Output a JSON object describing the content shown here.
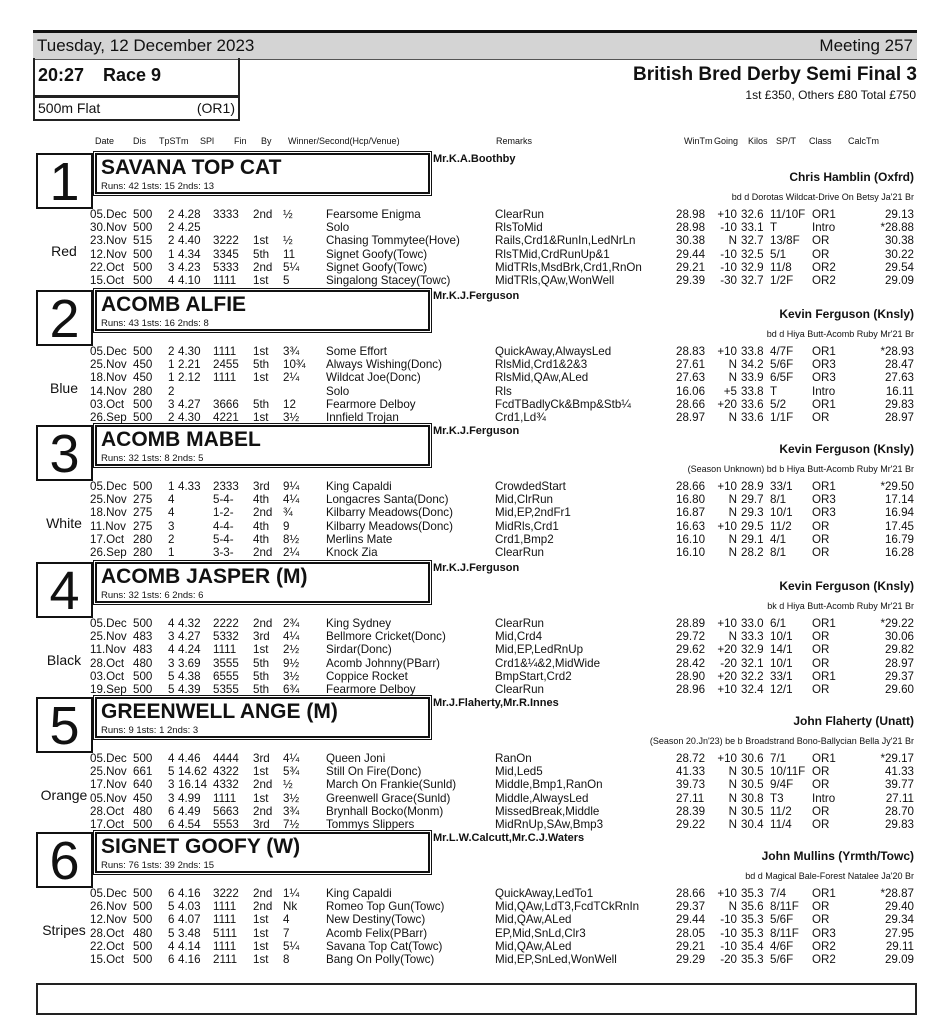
{
  "header": {
    "date": "Tuesday, 12 December 2023",
    "meeting": "Meeting 257",
    "race_time": "20:27",
    "race_number": "Race 9",
    "distance": "500m Flat",
    "grade": "(OR1)",
    "title": "British Bred Derby Semi Final 3",
    "prize": "1st £350, Others £80 Total £750"
  },
  "columns": [
    "Date",
    "Dis",
    "TpSTm",
    "SPl",
    "Fin",
    "By",
    "Winner/Second(Hcp/Venue)",
    "Remarks",
    "WinTm",
    "Going",
    "Kilos",
    "SP/T",
    "Class",
    "CalcTm"
  ],
  "dogs": [
    {
      "trap": "1",
      "color": "Red",
      "name": "SAVANA TOP CAT",
      "stats": "Runs: 42 1sts: 15 2nds: 13",
      "owner": "Mr.K.A.Boothby",
      "trainer": "Chris Hamblin (Oxfrd)",
      "breeding": "bd d Dorotas Wildcat-Drive On Betsy Ja'21 Br",
      "runs": [
        [
          "05.Dec",
          "500",
          "2",
          "4.28",
          "3333",
          "2nd",
          "½",
          "Fearsome Enigma",
          "ClearRun",
          "28.98",
          "+10",
          "32.6",
          "11/10F",
          "OR1",
          "29.13"
        ],
        [
          "30.Nov",
          "500",
          "2",
          "4.25",
          "",
          "",
          "",
          "Solo",
          "RlsToMid",
          "28.98",
          "-10",
          "33.1",
          "T",
          "Intro",
          "*28.88"
        ],
        [
          "23.Nov",
          "515",
          "2",
          "4.40",
          "3222",
          "1st",
          "½",
          "Chasing Tommytee(Hove)",
          "Rails,Crd1&RunIn,LedNrLn",
          "30.38",
          "N",
          "32.7",
          "13/8F",
          "OR",
          "30.38"
        ],
        [
          "12.Nov",
          "500",
          "1",
          "4.34",
          "3345",
          "5th",
          "11",
          "Signet Goofy(Towc)",
          "RlsTMid,CrdRunUp&1",
          "29.44",
          "-10",
          "32.5",
          "5/1",
          "OR",
          "30.22"
        ],
        [
          "22.Oct",
          "500",
          "3",
          "4.23",
          "5333",
          "2nd",
          "5¼",
          "Signet Goofy(Towc)",
          "MidTRls,MsdBrk,Crd1,RnOn",
          "29.21",
          "-10",
          "32.9",
          "11/8",
          "OR2",
          "29.54"
        ],
        [
          "15.Oct",
          "500",
          "4",
          "4.10",
          "1111",
          "1st",
          "5",
          "Singalong Stacey(Towc)",
          "MidTRls,QAw,WonWell",
          "29.39",
          "-30",
          "32.7",
          "1/2F",
          "OR2",
          "29.09"
        ]
      ]
    },
    {
      "trap": "2",
      "color": "Blue",
      "name": "ACOMB ALFIE",
      "stats": "Runs: 43 1sts: 16 2nds: 8",
      "owner": "Mr.K.J.Ferguson",
      "trainer": "Kevin Ferguson (Knsly)",
      "breeding": "bd d Hiya Butt-Acomb Ruby Mr'21 Br",
      "runs": [
        [
          "05.Dec",
          "500",
          "2",
          "4.30",
          "1111",
          "1st",
          "3¾",
          "Some Effort",
          "QuickAway,AlwaysLed",
          "28.83",
          "+10",
          "33.8",
          "4/7F",
          "OR1",
          "*28.93"
        ],
        [
          "25.Nov",
          "450",
          "1",
          "2.21",
          "2455",
          "5th",
          "10¾",
          "Always Wishing(Donc)",
          "RlsMid,Crd1&2&3",
          "27.61",
          "N",
          "34.2",
          "5/6F",
          "OR3",
          "28.47"
        ],
        [
          "18.Nov",
          "450",
          "1",
          "2.12",
          "1111",
          "1st",
          "2¼",
          "Wildcat Joe(Donc)",
          "RlsMid,QAw,ALed",
          "27.63",
          "N",
          "33.9",
          "6/5F",
          "OR3",
          "27.63"
        ],
        [
          "14.Nov",
          "280",
          "2",
          "",
          "",
          "",
          "",
          "Solo",
          "Rls",
          "16.06",
          "+5",
          "33.8",
          "T",
          "Intro",
          "16.11"
        ],
        [
          "03.Oct",
          "500",
          "3",
          "4.27",
          "3666",
          "5th",
          "12",
          "Fearmore Delboy",
          "FcdTBadlyCk&Bmp&Stb¼",
          "28.66",
          "+20",
          "33.6",
          "5/2",
          "OR1",
          "29.83"
        ],
        [
          "26.Sep",
          "500",
          "2",
          "4.30",
          "4221",
          "1st",
          "3½",
          "Innfield Trojan",
          "Crd1,Ld¾",
          "28.97",
          "N",
          "33.6",
          "1/1F",
          "OR",
          "28.97"
        ]
      ]
    },
    {
      "trap": "3",
      "color": "White",
      "name": "ACOMB MABEL",
      "stats": "Runs: 32 1sts: 8 2nds: 5",
      "owner": "Mr.K.J.Ferguson",
      "trainer": "Kevin Ferguson (Knsly)",
      "breeding": "(Season Unknown) bd b Hiya Butt-Acomb Ruby Mr'21 Br",
      "runs": [
        [
          "05.Dec",
          "500",
          "1",
          "4.33",
          "2333",
          "3rd",
          "9¼",
          "King Capaldi",
          "CrowdedStart",
          "28.66",
          "+10",
          "28.9",
          "33/1",
          "OR1",
          "*29.50"
        ],
        [
          "25.Nov",
          "275",
          "4",
          "",
          "5-4-",
          "4th",
          "4¼",
          "Longacres Santa(Donc)",
          "Mid,ClrRun",
          "16.80",
          "N",
          "29.7",
          "8/1",
          "OR3",
          "17.14"
        ],
        [
          "18.Nov",
          "275",
          "4",
          "",
          "1-2-",
          "2nd",
          "¾",
          "Kilbarry Meadows(Donc)",
          "Mid,EP,2ndFr1",
          "16.87",
          "N",
          "29.3",
          "10/1",
          "OR3",
          "16.94"
        ],
        [
          "11.Nov",
          "275",
          "3",
          "",
          "4-4-",
          "4th",
          "9",
          "Kilbarry Meadows(Donc)",
          "MidRls,Crd1",
          "16.63",
          "+10",
          "29.5",
          "11/2",
          "OR",
          "17.45"
        ],
        [
          "17.Oct",
          "280",
          "2",
          "",
          "5-4-",
          "4th",
          "8½",
          "Merlins Mate",
          "Crd1,Bmp2",
          "16.10",
          "N",
          "29.1",
          "4/1",
          "OR",
          "16.79"
        ],
        [
          "26.Sep",
          "280",
          "1",
          "",
          "3-3-",
          "2nd",
          "2¼",
          "Knock Zia",
          "ClearRun",
          "16.10",
          "N",
          "28.2",
          "8/1",
          "OR",
          "16.28"
        ]
      ]
    },
    {
      "trap": "4",
      "color": "Black",
      "name": "ACOMB JASPER (M)",
      "stats": "Runs: 32 1sts: 6 2nds: 6",
      "owner": "Mr.K.J.Ferguson",
      "trainer": "Kevin Ferguson (Knsly)",
      "breeding": "bk d Hiya Butt-Acomb Ruby Mr'21 Br",
      "runs": [
        [
          "05.Dec",
          "500",
          "4",
          "4.32",
          "2222",
          "2nd",
          "2¾",
          "King Sydney",
          "ClearRun",
          "28.89",
          "+10",
          "33.0",
          "6/1",
          "OR1",
          "*29.22"
        ],
        [
          "25.Nov",
          "483",
          "3",
          "4.27",
          "5332",
          "3rd",
          "4¼",
          "Bellmore Cricket(Donc)",
          "Mid,Crd4",
          "29.72",
          "N",
          "33.3",
          "10/1",
          "OR",
          "30.06"
        ],
        [
          "11.Nov",
          "483",
          "4",
          "4.24",
          "1111",
          "1st",
          "2½",
          "Sirdar(Donc)",
          "Mid,EP,LedRnUp",
          "29.62",
          "+20",
          "32.9",
          "14/1",
          "OR",
          "29.82"
        ],
        [
          "28.Oct",
          "480",
          "3",
          "3.69",
          "3555",
          "5th",
          "9½",
          "Acomb Johnny(PBarr)",
          "Crd1&¼&2,MidWide",
          "28.42",
          "-20",
          "32.1",
          "10/1",
          "OR",
          "28.97"
        ],
        [
          "03.Oct",
          "500",
          "5",
          "4.38",
          "6555",
          "5th",
          "3½",
          "Coppice Rocket",
          "BmpStart,Crd2",
          "28.90",
          "+20",
          "32.2",
          "33/1",
          "OR1",
          "29.37"
        ],
        [
          "19.Sep",
          "500",
          "5",
          "4.39",
          "5355",
          "5th",
          "6¾",
          "Fearmore Delboy",
          "ClearRun",
          "28.96",
          "+10",
          "32.4",
          "12/1",
          "OR",
          "29.60"
        ]
      ]
    },
    {
      "trap": "5",
      "color": "Orange",
      "name": "GREENWELL ANGE (M)",
      "stats": "Runs: 9 1sts: 1 2nds: 3",
      "owner": "Mr.J.Flaherty,Mr.R.Innes",
      "trainer": "John Flaherty (Unatt)",
      "breeding": "(Season 20.Jn'23) be b Broadstrand Bono-Ballycian Bella Jy'21 Br",
      "runs": [
        [
          "05.Dec",
          "500",
          "4",
          "4.46",
          "4444",
          "3rd",
          "4¼",
          "Queen Joni",
          "RanOn",
          "28.72",
          "+10",
          "30.6",
          "7/1",
          "OR1",
          "*29.17"
        ],
        [
          "25.Nov",
          "661",
          "5",
          "14.62",
          "4322",
          "1st",
          "5¾",
          "Still On Fire(Donc)",
          "Mid,Led5",
          "41.33",
          "N",
          "30.5",
          "10/11F",
          "OR",
          "41.33"
        ],
        [
          "17.Nov",
          "640",
          "3",
          "16.14",
          "4332",
          "2nd",
          "½",
          "March On Frankie(Sunld)",
          "Middle,Bmp1,RanOn",
          "39.73",
          "N",
          "30.5",
          "9/4F",
          "OR",
          "39.77"
        ],
        [
          "05.Nov",
          "450",
          "3",
          "4.99",
          "1111",
          "1st",
          "3½",
          "Greenwell Grace(Sunld)",
          "Middle,AlwaysLed",
          "27.11",
          "N",
          "30.8",
          "T3",
          "Intro",
          "27.11"
        ],
        [
          "28.Oct",
          "480",
          "6",
          "4.49",
          "5663",
          "2nd",
          "3¾",
          "Brynhall Bocko(Monm)",
          "MissedBreak,Middle",
          "28.39",
          "N",
          "30.5",
          "11/2",
          "OR",
          "28.70"
        ],
        [
          "17.Oct",
          "500",
          "6",
          "4.54",
          "5553",
          "3rd",
          "7½",
          "Tommys Slippers",
          "MidRnUp,SAw,Bmp3",
          "29.22",
          "N",
          "30.4",
          "11/4",
          "OR",
          "29.83"
        ]
      ]
    },
    {
      "trap": "6",
      "color": "Stripes",
      "name": "SIGNET GOOFY (W)",
      "stats": "Runs: 76 1sts: 39 2nds: 15",
      "owner": "Mr.L.W.Calcutt,Mr.C.J.Waters",
      "trainer": "John Mullins (Yrmth/Towc)",
      "breeding": "bd d Magical Bale-Forest Natalee Ja'20 Br",
      "runs": [
        [
          "05.Dec",
          "500",
          "6",
          "4.16",
          "3222",
          "2nd",
          "1¼",
          "King Capaldi",
          "QuickAway,LedTo1",
          "28.66",
          "+10",
          "35.3",
          "7/4",
          "OR1",
          "*28.87"
        ],
        [
          "26.Nov",
          "500",
          "5",
          "4.03",
          "1111",
          "2nd",
          "Nk",
          "Romeo Top Gun(Towc)",
          "Mid,QAw,LdT3,FcdTCkRnIn",
          "29.37",
          "N",
          "35.6",
          "8/11F",
          "OR",
          "29.40"
        ],
        [
          "12.Nov",
          "500",
          "6",
          "4.07",
          "1111",
          "1st",
          "4",
          "New Destiny(Towc)",
          "Mid,QAw,ALed",
          "29.44",
          "-10",
          "35.3",
          "5/6F",
          "OR",
          "29.34"
        ],
        [
          "28.Oct",
          "480",
          "5",
          "3.48",
          "5111",
          "1st",
          "7",
          "Acomb Felix(PBarr)",
          "EP,Mid,SnLd,Clr3",
          "28.05",
          "-10",
          "35.3",
          "8/11F",
          "OR3",
          "27.95"
        ],
        [
          "22.Oct",
          "500",
          "4",
          "4.14",
          "1111",
          "1st",
          "5¼",
          "Savana Top Cat(Towc)",
          "Mid,QAw,ALed",
          "29.21",
          "-10",
          "35.4",
          "4/6F",
          "OR2",
          "29.11"
        ],
        [
          "15.Oct",
          "500",
          "6",
          "4.16",
          "2111",
          "1st",
          "8",
          "Bang On Polly(Towc)",
          "Mid,EP,SnLed,WonWell",
          "29.29",
          "-20",
          "35.3",
          "5/6F",
          "OR2",
          "29.09"
        ]
      ]
    }
  ]
}
